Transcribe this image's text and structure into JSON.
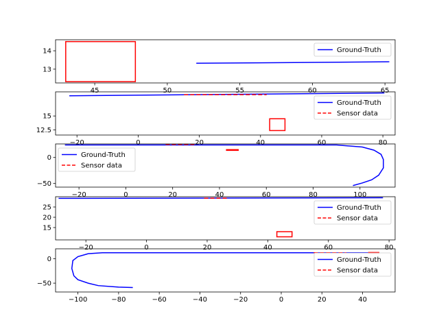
{
  "figure": {
    "background": "#ffffff"
  },
  "colors": {
    "ground_truth": "#0000ff",
    "sensor": "#ff0000",
    "axes": "#000000"
  },
  "chart_data": [
    {
      "type": "line",
      "xlim": [
        42.3,
        65.7
      ],
      "ylim": [
        12.25,
        14.6
      ],
      "xticks": [
        45,
        50,
        55,
        60,
        65
      ],
      "yticks": [
        13,
        14
      ],
      "legend": {
        "loc": "top-right",
        "entries": [
          "Ground-Truth"
        ]
      },
      "series": [
        {
          "name": "Ground-Truth",
          "color": "#0000ff",
          "style": "solid",
          "x": [
            52,
            65.3
          ],
          "y": [
            13.32,
            13.4
          ]
        }
      ],
      "boxes": [
        {
          "x": [
            43.0,
            47.8
          ],
          "y": [
            12.32,
            14.5
          ]
        }
      ]
    },
    {
      "type": "line",
      "xlim": [
        -27,
        84
      ],
      "ylim": [
        11.6,
        19.3
      ],
      "xticks": [
        -20,
        0,
        20,
        40,
        60,
        80
      ],
      "yticks": [
        12.5,
        15.0
      ],
      "legend": {
        "loc": "lower-right",
        "entries": [
          "Ground-Truth",
          "Sensor data"
        ]
      },
      "series": [
        {
          "name": "Ground-Truth",
          "color": "#0000ff",
          "style": "solid",
          "x": [
            -22.5,
            80.5
          ],
          "y": [
            18.6,
            19.1
          ]
        },
        {
          "name": "Sensor data",
          "color": "#ff0000",
          "style": "dashed",
          "x": [
            15,
            42
          ],
          "y": [
            18.8,
            18.8
          ]
        }
      ],
      "boxes": [
        {
          "x": [
            43,
            48
          ],
          "y": [
            12.4,
            14.5
          ]
        }
      ]
    },
    {
      "type": "line",
      "xlim": [
        -30,
        115
      ],
      "ylim": [
        -57,
        26
      ],
      "xticks": [
        -20,
        0,
        20,
        40,
        60,
        80,
        100
      ],
      "yticks": [
        -50,
        0
      ],
      "legend": {
        "loc": "top-left",
        "entries": [
          "Ground-Truth",
          "Sensor data"
        ]
      },
      "series": [
        {
          "name": "Ground-Truth",
          "color": "#0000ff",
          "style": "solid",
          "x": [
            -26,
            30,
            60,
            90,
            101,
            106,
            109,
            110,
            110,
            108,
            105,
            101,
            97
          ],
          "y": [
            24,
            24,
            24,
            24,
            20,
            14,
            6,
            -4,
            -20,
            -34,
            -43,
            -49,
            -54
          ]
        },
        {
          "name": "Sensor data",
          "color": "#ff0000",
          "style": "dashed",
          "x": [
            17,
            30
          ],
          "y": [
            25,
            25
          ]
        }
      ],
      "boxes": [
        {
          "x": [
            43,
            48
          ],
          "y": [
            14,
            15
          ]
        }
      ]
    },
    {
      "type": "line",
      "xlim": [
        -30,
        82
      ],
      "ylim": [
        9,
        30
      ],
      "xticks": [
        -20,
        0,
        20,
        40,
        60,
        80
      ],
      "yticks": [
        15,
        20,
        25
      ],
      "legend": {
        "loc": "lower-right",
        "entries": [
          "Ground-Truth",
          "Sensor data"
        ]
      },
      "series": [
        {
          "name": "Ground-Truth",
          "color": "#0000ff",
          "style": "solid",
          "x": [
            -29,
            78
          ],
          "y": [
            29.2,
            29.5
          ]
        },
        {
          "name": "Sensor data",
          "color": "#ff0000",
          "style": "dashed",
          "x": [
            19,
            27
          ],
          "y": [
            29.3,
            29.3
          ]
        }
      ],
      "boxes": [
        {
          "x": [
            43,
            48
          ],
          "y": [
            10.5,
            13.0
          ]
        }
      ]
    },
    {
      "type": "line",
      "xlim": [
        -111,
        56
      ],
      "ylim": [
        -68,
        20
      ],
      "xticks": [
        -100,
        -80,
        -60,
        -40,
        -20,
        0,
        20,
        40
      ],
      "yticks": [
        -50,
        0
      ],
      "legend": {
        "loc": "top-right",
        "entries": [
          "Ground-Truth",
          "Sensor data"
        ]
      },
      "series": [
        {
          "name": "Ground-Truth",
          "color": "#0000ff",
          "style": "solid",
          "x": [
            48,
            0,
            -88,
            -95,
            -100,
            -102.5,
            -103,
            -102,
            -100,
            -95,
            -90,
            -80,
            -73
          ],
          "y": [
            12,
            12,
            12,
            10,
            4,
            -4,
            -20,
            -35,
            -43,
            -50,
            -55,
            -58,
            -59
          ]
        },
        {
          "name": "Sensor data",
          "color": "#ff0000",
          "style": "dashed",
          "x": [
            16,
            32
          ],
          "y": [
            12,
            12
          ]
        }
      ],
      "boxes": [
        {
          "x": [
            43,
            48
          ],
          "y": [
            11.5,
            12.5
          ]
        }
      ]
    }
  ]
}
